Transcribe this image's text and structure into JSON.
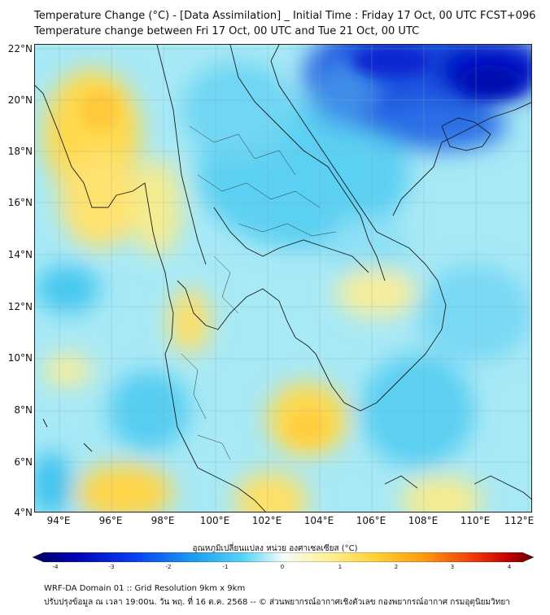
{
  "title": {
    "line1": "Temperature Change (°C) - [Data Assimilation] _ Initial Time : Friday 17 Oct, 00 UTC FCST+096",
    "line2": "Temperature change between Fri 17 Oct, 00 UTC and Tue 21 Oct, 00 UTC"
  },
  "axes": {
    "lat_ticks": [
      "22°N",
      "20°N",
      "18°N",
      "16°N",
      "14°N",
      "12°N",
      "10°N",
      "8°N",
      "6°N",
      "4°N"
    ],
    "lon_ticks": [
      "94°E",
      "96°E",
      "98°E",
      "100°E",
      "102°E",
      "104°E",
      "106°E",
      "108°E",
      "110°E",
      "112°E"
    ]
  },
  "colorbar": {
    "label": "อุณหภูมิเปลี่ยนแปลง หน่วย องศาเซลเซียส (°C)",
    "ticks": [
      "-4",
      "-3",
      "-2",
      "-1",
      "0",
      "1",
      "2",
      "3",
      "4"
    ],
    "range": [
      -4,
      4
    ]
  },
  "footer": {
    "line1": "WRF-DA Domain 01 :: Grid Resolution 9km x 9km",
    "line2": "ปรับปรุงข้อมูล ณ เวลา 19:00น. วัน พฤ. ที่ 16 ต.ค. 2568 -- © ส่วนพยากรณ์อากาศเชิงตัวเลข กองพยากรณ์อากาศ กรมอุตุนิยมวิทยา"
  },
  "colors": {
    "ocean_base": "#9fe6f5",
    "warm": "#ffe066",
    "cool": "#33bdf0",
    "cold": "#0022cc"
  }
}
